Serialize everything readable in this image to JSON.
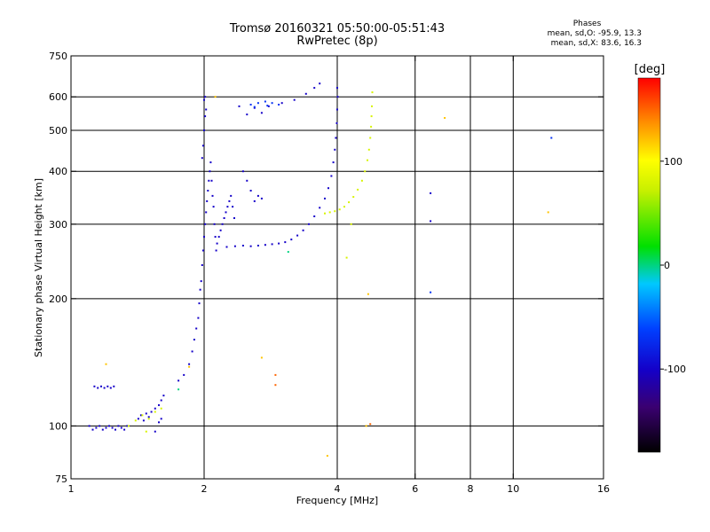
{
  "header": {
    "title": "Tromsø 20160321 05:50:00-05:51:43",
    "subtitle": "RwPretec (8p)",
    "stats_title": "Phases",
    "stats_o": "mean, sd,O: -95.9, 13.3",
    "stats_x": "mean, sd,X: 83.6, 16.3"
  },
  "chart_data": {
    "type": "scatter",
    "xlabel": "Frequency [MHz]",
    "ylabel": "Stationary phase Virtual Height [km]",
    "x_scale": "log",
    "y_scale": "log",
    "xlim": [
      1,
      16
    ],
    "ylim": [
      75,
      750
    ],
    "x_ticks": [
      1,
      2,
      4,
      6,
      8,
      10,
      16
    ],
    "x_tick_labels": [
      "1",
      "2",
      "4",
      "6",
      "8",
      "10",
      "16"
    ],
    "x_gridlines": [
      2,
      4,
      6,
      8,
      10
    ],
    "y_ticks": [
      75,
      100,
      200,
      300,
      400,
      500,
      600,
      750
    ],
    "y_tick_labels": [
      "75",
      "100",
      "200",
      "300",
      "400",
      "500",
      "600",
      "750"
    ],
    "y_gridlines": [
      100,
      200,
      300,
      400,
      500,
      600
    ],
    "grid": true,
    "colorbar": {
      "label": "[deg]",
      "range": [
        -180,
        180
      ],
      "ticks": [
        -100,
        0,
        100
      ],
      "tick_labels": [
        "-100",
        "0",
        "100"
      ],
      "colormap": "rainbow"
    },
    "series": [
      {
        "color_phase": -100,
        "points": [
          [
            1.1,
            100
          ],
          [
            1.12,
            98
          ],
          [
            1.14,
            99
          ],
          [
            1.16,
            100
          ],
          [
            1.18,
            98
          ],
          [
            1.2,
            99
          ],
          [
            1.22,
            100
          ],
          [
            1.24,
            99
          ],
          [
            1.26,
            98
          ],
          [
            1.28,
            100
          ],
          [
            1.3,
            99
          ],
          [
            1.32,
            98
          ],
          [
            1.34,
            100
          ],
          [
            1.13,
            124
          ],
          [
            1.15,
            123
          ],
          [
            1.17,
            124
          ],
          [
            1.19,
            123
          ],
          [
            1.21,
            124
          ],
          [
            1.23,
            123
          ],
          [
            1.25,
            124
          ],
          [
            1.42,
            104
          ],
          [
            1.44,
            106
          ],
          [
            1.46,
            103
          ],
          [
            1.48,
            107
          ],
          [
            1.5,
            105
          ],
          [
            1.52,
            108
          ],
          [
            1.55,
            110
          ],
          [
            1.58,
            112
          ],
          [
            1.6,
            115
          ],
          [
            1.62,
            118
          ],
          [
            1.58,
            102
          ],
          [
            1.6,
            104
          ],
          [
            1.55,
            97
          ],
          [
            1.75,
            128
          ],
          [
            1.8,
            132
          ],
          [
            1.85,
            140
          ],
          [
            1.88,
            150
          ],
          [
            1.9,
            160
          ],
          [
            1.92,
            170
          ],
          [
            1.94,
            180
          ],
          [
            1.95,
            195
          ],
          [
            1.96,
            210
          ],
          [
            1.97,
            220
          ],
          [
            1.98,
            240
          ],
          [
            1.99,
            260
          ],
          [
            2.0,
            280
          ],
          [
            2.01,
            300
          ],
          [
            2.02,
            320
          ],
          [
            2.03,
            340
          ],
          [
            2.04,
            360
          ],
          [
            2.05,
            380
          ],
          [
            2.06,
            400
          ],
          [
            2.07,
            420
          ],
          [
            2.08,
            380
          ],
          [
            2.09,
            350
          ],
          [
            2.1,
            330
          ],
          [
            2.11,
            300
          ],
          [
            2.12,
            280
          ],
          [
            2.13,
            260
          ],
          [
            1.98,
            430
          ],
          [
            1.99,
            460
          ],
          [
            2.0,
            500
          ],
          [
            2.01,
            540
          ],
          [
            2.02,
            560
          ],
          [
            2.0,
            590
          ],
          [
            2.01,
            600
          ],
          [
            2.14,
            270
          ],
          [
            2.16,
            280
          ],
          [
            2.18,
            290
          ],
          [
            2.2,
            300
          ],
          [
            2.22,
            310
          ],
          [
            2.24,
            320
          ],
          [
            2.26,
            330
          ],
          [
            2.28,
            340
          ],
          [
            2.3,
            350
          ],
          [
            2.32,
            330
          ],
          [
            2.34,
            310
          ],
          [
            2.45,
            400
          ],
          [
            2.5,
            380
          ],
          [
            2.55,
            360
          ],
          [
            2.6,
            340
          ],
          [
            2.65,
            350
          ],
          [
            2.7,
            345
          ],
          [
            2.25,
            265
          ],
          [
            2.35,
            266
          ],
          [
            2.45,
            267
          ],
          [
            2.55,
            266
          ],
          [
            2.65,
            267
          ],
          [
            2.75,
            268
          ],
          [
            2.85,
            269
          ],
          [
            2.95,
            270
          ],
          [
            3.05,
            272
          ],
          [
            3.15,
            276
          ],
          [
            3.25,
            282
          ],
          [
            3.35,
            290
          ],
          [
            3.45,
            300
          ],
          [
            3.55,
            313
          ],
          [
            3.65,
            328
          ],
          [
            3.75,
            345
          ],
          [
            3.82,
            365
          ],
          [
            3.88,
            390
          ],
          [
            3.92,
            420
          ],
          [
            3.95,
            450
          ],
          [
            3.97,
            480
          ],
          [
            3.99,
            520
          ],
          [
            4.0,
            560
          ],
          [
            4.01,
            600
          ],
          [
            4.0,
            630
          ],
          [
            2.4,
            570
          ],
          [
            2.6,
            565
          ],
          [
            2.8,
            570
          ],
          [
            3.0,
            580
          ],
          [
            3.2,
            590
          ],
          [
            3.4,
            610
          ],
          [
            3.55,
            630
          ],
          [
            3.65,
            645
          ],
          [
            2.5,
            545
          ],
          [
            2.7,
            550
          ],
          [
            6.5,
            355
          ],
          [
            6.5,
            305
          ]
        ]
      },
      {
        "color_phase": -70,
        "points": [
          [
            2.55,
            575
          ],
          [
            2.65,
            580
          ],
          [
            2.75,
            585
          ],
          [
            2.85,
            580
          ],
          [
            2.95,
            575
          ],
          [
            2.6,
            568
          ],
          [
            2.78,
            572
          ],
          [
            6.5,
            207
          ],
          [
            12.2,
            480
          ]
        ]
      },
      {
        "color_phase": 80,
        "points": [
          [
            3.75,
            318
          ],
          [
            3.85,
            320
          ],
          [
            3.95,
            322
          ],
          [
            4.05,
            325
          ],
          [
            4.15,
            330
          ],
          [
            4.25,
            338
          ],
          [
            4.35,
            348
          ],
          [
            4.45,
            362
          ],
          [
            4.55,
            380
          ],
          [
            4.62,
            400
          ],
          [
            4.68,
            425
          ],
          [
            4.72,
            450
          ],
          [
            4.75,
            480
          ],
          [
            4.77,
            510
          ],
          [
            4.78,
            540
          ],
          [
            4.79,
            570
          ],
          [
            4.8,
            615
          ],
          [
            1.35,
            100
          ],
          [
            1.4,
            103
          ],
          [
            1.45,
            106
          ],
          [
            1.5,
            104
          ],
          [
            1.55,
            108
          ],
          [
            1.6,
            110
          ],
          [
            1.48,
            97
          ],
          [
            4.3,
            300
          ],
          [
            4.2,
            250
          ]
        ]
      },
      {
        "color_phase": 120,
        "points": [
          [
            1.2,
            140
          ],
          [
            1.85,
            138
          ],
          [
            4.7,
            205
          ],
          [
            7.0,
            535
          ],
          [
            12.0,
            320
          ],
          [
            2.12,
            600
          ],
          [
            2.7,
            145
          ],
          [
            4.65,
            100
          ],
          [
            3.8,
            85
          ]
        ]
      },
      {
        "color_phase": 150,
        "points": [
          [
            2.9,
            132
          ],
          [
            2.9,
            125
          ],
          [
            4.75,
            101
          ]
        ]
      },
      {
        "color_phase": 0,
        "points": [
          [
            1.75,
            122
          ],
          [
            3.1,
            258
          ]
        ]
      }
    ]
  }
}
